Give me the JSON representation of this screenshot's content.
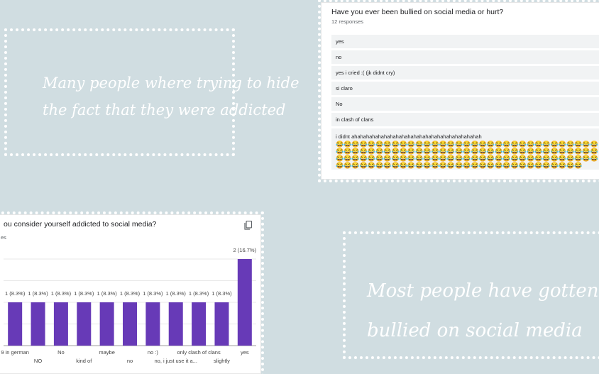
{
  "notes": {
    "left_note": [
      "Many people where trying to hide",
      "the fact that they were addicted"
    ],
    "right_note": [
      "Most people have gotten",
      "bullied on social media"
    ]
  },
  "form1": {
    "question": "Have you ever been bullied on social media or hurt?",
    "responses_count": "12 responses",
    "answers": [
      "yes",
      "no",
      "yes i cried :( (jk didnt cry)",
      "si claro",
      "No",
      "in clash of clans"
    ],
    "last_answer": "i didnt ahahahahahahahahahahahahahahahahahahahahahah",
    "emoji": "😂"
  },
  "form2": {
    "question": "ou consider yourself addicted to social media?",
    "responses_count": "es",
    "copy_icon": "copy-icon"
  },
  "chart_data": {
    "type": "bar",
    "categories": [
      "9 in german",
      "NO",
      "No",
      "kind of",
      "maybe",
      "no",
      "no :)",
      "no, i just use it a...",
      "only clash of clans",
      "slightly",
      "yes"
    ],
    "values": [
      1,
      1,
      1,
      1,
      1,
      1,
      1,
      1,
      1,
      1,
      2
    ],
    "labels": [
      "1 (8.3%)",
      "1 (8.3%)",
      "1 (8.3%)",
      "1 (8.3%)",
      "1 (8.3%)",
      "1 (8.3%)",
      "1 (8.3%)",
      "1 (8.3%)",
      "1 (8.3%)",
      "1 (8.3%)",
      "2 (16.7%)"
    ],
    "colors": {
      "bar": "#673ab7"
    },
    "ylim": [
      0,
      2
    ],
    "grid": true
  }
}
